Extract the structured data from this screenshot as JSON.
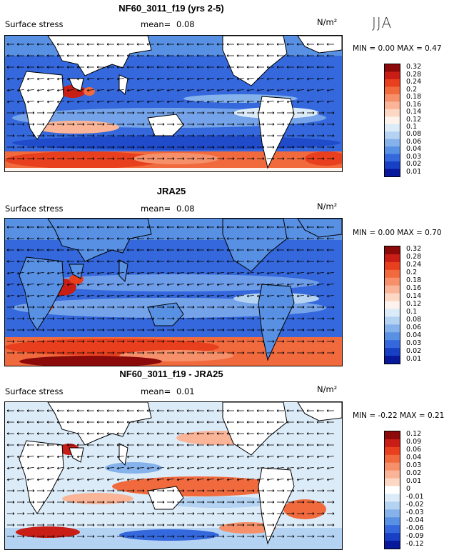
{
  "season": "JJA",
  "chart_data": [
    {
      "type": "heatmap",
      "id": "model",
      "title": "NF60_3011_f19 (yrs 2-5)",
      "variable": "Surface stress",
      "mean_label": "mean=",
      "mean": "0.08",
      "units": "N/m²",
      "min_label": "MIN =",
      "min": "0.00",
      "max_label": "MAX =",
      "max": "0.47",
      "levels": [
        "0.32",
        "0.28",
        "0.24",
        "0.2",
        "0.18",
        "0.16",
        "0.14",
        "0.12",
        "0.1",
        "0.08",
        "0.06",
        "0.04",
        "0.03",
        "0.02",
        "0.01"
      ],
      "colors": [
        "#8c0a0a",
        "#c81e16",
        "#e8401e",
        "#f06a3e",
        "#f6906a",
        "#fab498",
        "#fcd8c4",
        "#fdf3ec",
        "#dcebf8",
        "#b4d2f2",
        "#86b2ec",
        "#5890e4",
        "#3468dc",
        "#1840c4",
        "#08189a"
      ]
    },
    {
      "type": "heatmap",
      "id": "obs",
      "title": "JRA25",
      "variable": "Surface stress",
      "mean_label": "mean=",
      "mean": "0.08",
      "units": "N/m²",
      "min_label": "MIN =",
      "min": "0.00",
      "max_label": "MAX =",
      "max": "0.70",
      "levels": [
        "0.32",
        "0.28",
        "0.24",
        "0.2",
        "0.18",
        "0.16",
        "0.14",
        "0.12",
        "0.1",
        "0.08",
        "0.06",
        "0.04",
        "0.03",
        "0.02",
        "0.01"
      ],
      "colors": [
        "#8c0a0a",
        "#c81e16",
        "#e8401e",
        "#f06a3e",
        "#f6906a",
        "#fab498",
        "#fcd8c4",
        "#fdf3ec",
        "#dcebf8",
        "#b4d2f2",
        "#86b2ec",
        "#5890e4",
        "#3468dc",
        "#1840c4",
        "#08189a"
      ]
    },
    {
      "type": "heatmap",
      "id": "diff",
      "title": "NF60_3011_f19 - JRA25",
      "variable": "Surface stress",
      "mean_label": "mean=",
      "mean": "0.01",
      "units": "N/m²",
      "min_label": "MIN =",
      "min": "-0.22",
      "max_label": "MAX =",
      "max": "0.21",
      "levels": [
        "0.12",
        "0.09",
        "0.06",
        "0.04",
        "0.03",
        "0.02",
        "0.01",
        "0",
        "-0.01",
        "-0.02",
        "-0.03",
        "-0.04",
        "-0.06",
        "-0.09",
        "-0.12"
      ],
      "colors": [
        "#8c0a0a",
        "#c81e16",
        "#e8401e",
        "#f06a3e",
        "#f6906a",
        "#fab498",
        "#fcd8c4",
        "#ffffff",
        "#dcebf8",
        "#b4d2f2",
        "#86b2ec",
        "#5890e4",
        "#3468dc",
        "#1840c4",
        "#08189a"
      ]
    }
  ]
}
